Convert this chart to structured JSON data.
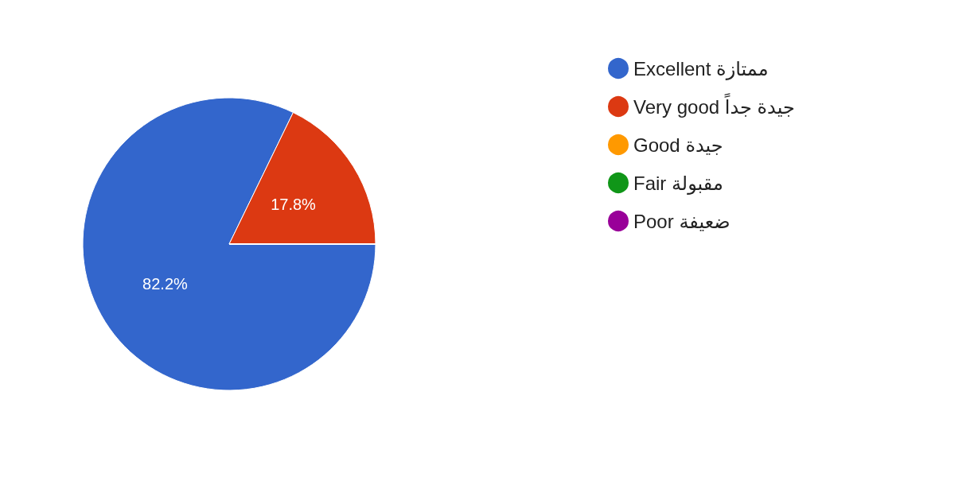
{
  "chart_data": {
    "type": "pie",
    "categories": [
      "Excellent ممتازة",
      "Very good جيدة جداً",
      "Good جيدة",
      "Fair مقبولة",
      "Poor ضعيفة"
    ],
    "values": [
      82.2,
      17.8,
      0,
      0,
      0
    ],
    "colors": [
      "#3366cc",
      "#dc3912",
      "#ff9900",
      "#109618",
      "#990099"
    ],
    "value_labels": [
      "82.2%",
      "17.8%",
      null,
      null,
      null
    ],
    "legend": "top right"
  }
}
